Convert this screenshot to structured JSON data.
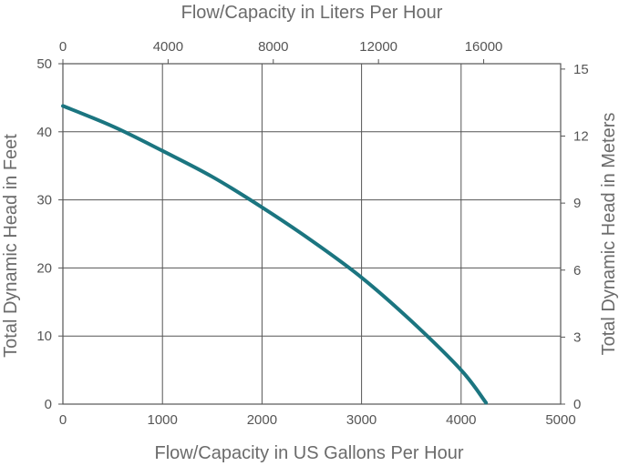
{
  "chart_data": {
    "type": "line",
    "x_axis_bottom": {
      "label": "Flow/Capacity in US Gallons Per Hour",
      "range": [
        0,
        5000
      ],
      "ticks": [
        0,
        1000,
        2000,
        3000,
        4000,
        5000
      ]
    },
    "x_axis_top": {
      "label": "Flow/Capacity in Liters Per Hour",
      "ticks": [
        0,
        4000,
        8000,
        12000,
        16000
      ]
    },
    "y_axis_left": {
      "label": "Total Dynamic Head in Feet",
      "range": [
        0,
        50
      ],
      "ticks": [
        0,
        10,
        20,
        30,
        40,
        50
      ]
    },
    "y_axis_right": {
      "label": "Total Dynamic Head in Meters",
      "ticks": [
        0,
        3,
        6,
        9,
        12,
        15
      ]
    },
    "grid": true,
    "series": [
      {
        "color": "#1b7580",
        "x": [
          0,
          500,
          1000,
          1500,
          2000,
          2500,
          3000,
          3500,
          4000,
          4250
        ],
        "y": [
          43.8,
          40.8,
          37.2,
          33.4,
          28.9,
          24.0,
          18.6,
          12.2,
          5.0,
          0.2
        ]
      }
    ]
  }
}
